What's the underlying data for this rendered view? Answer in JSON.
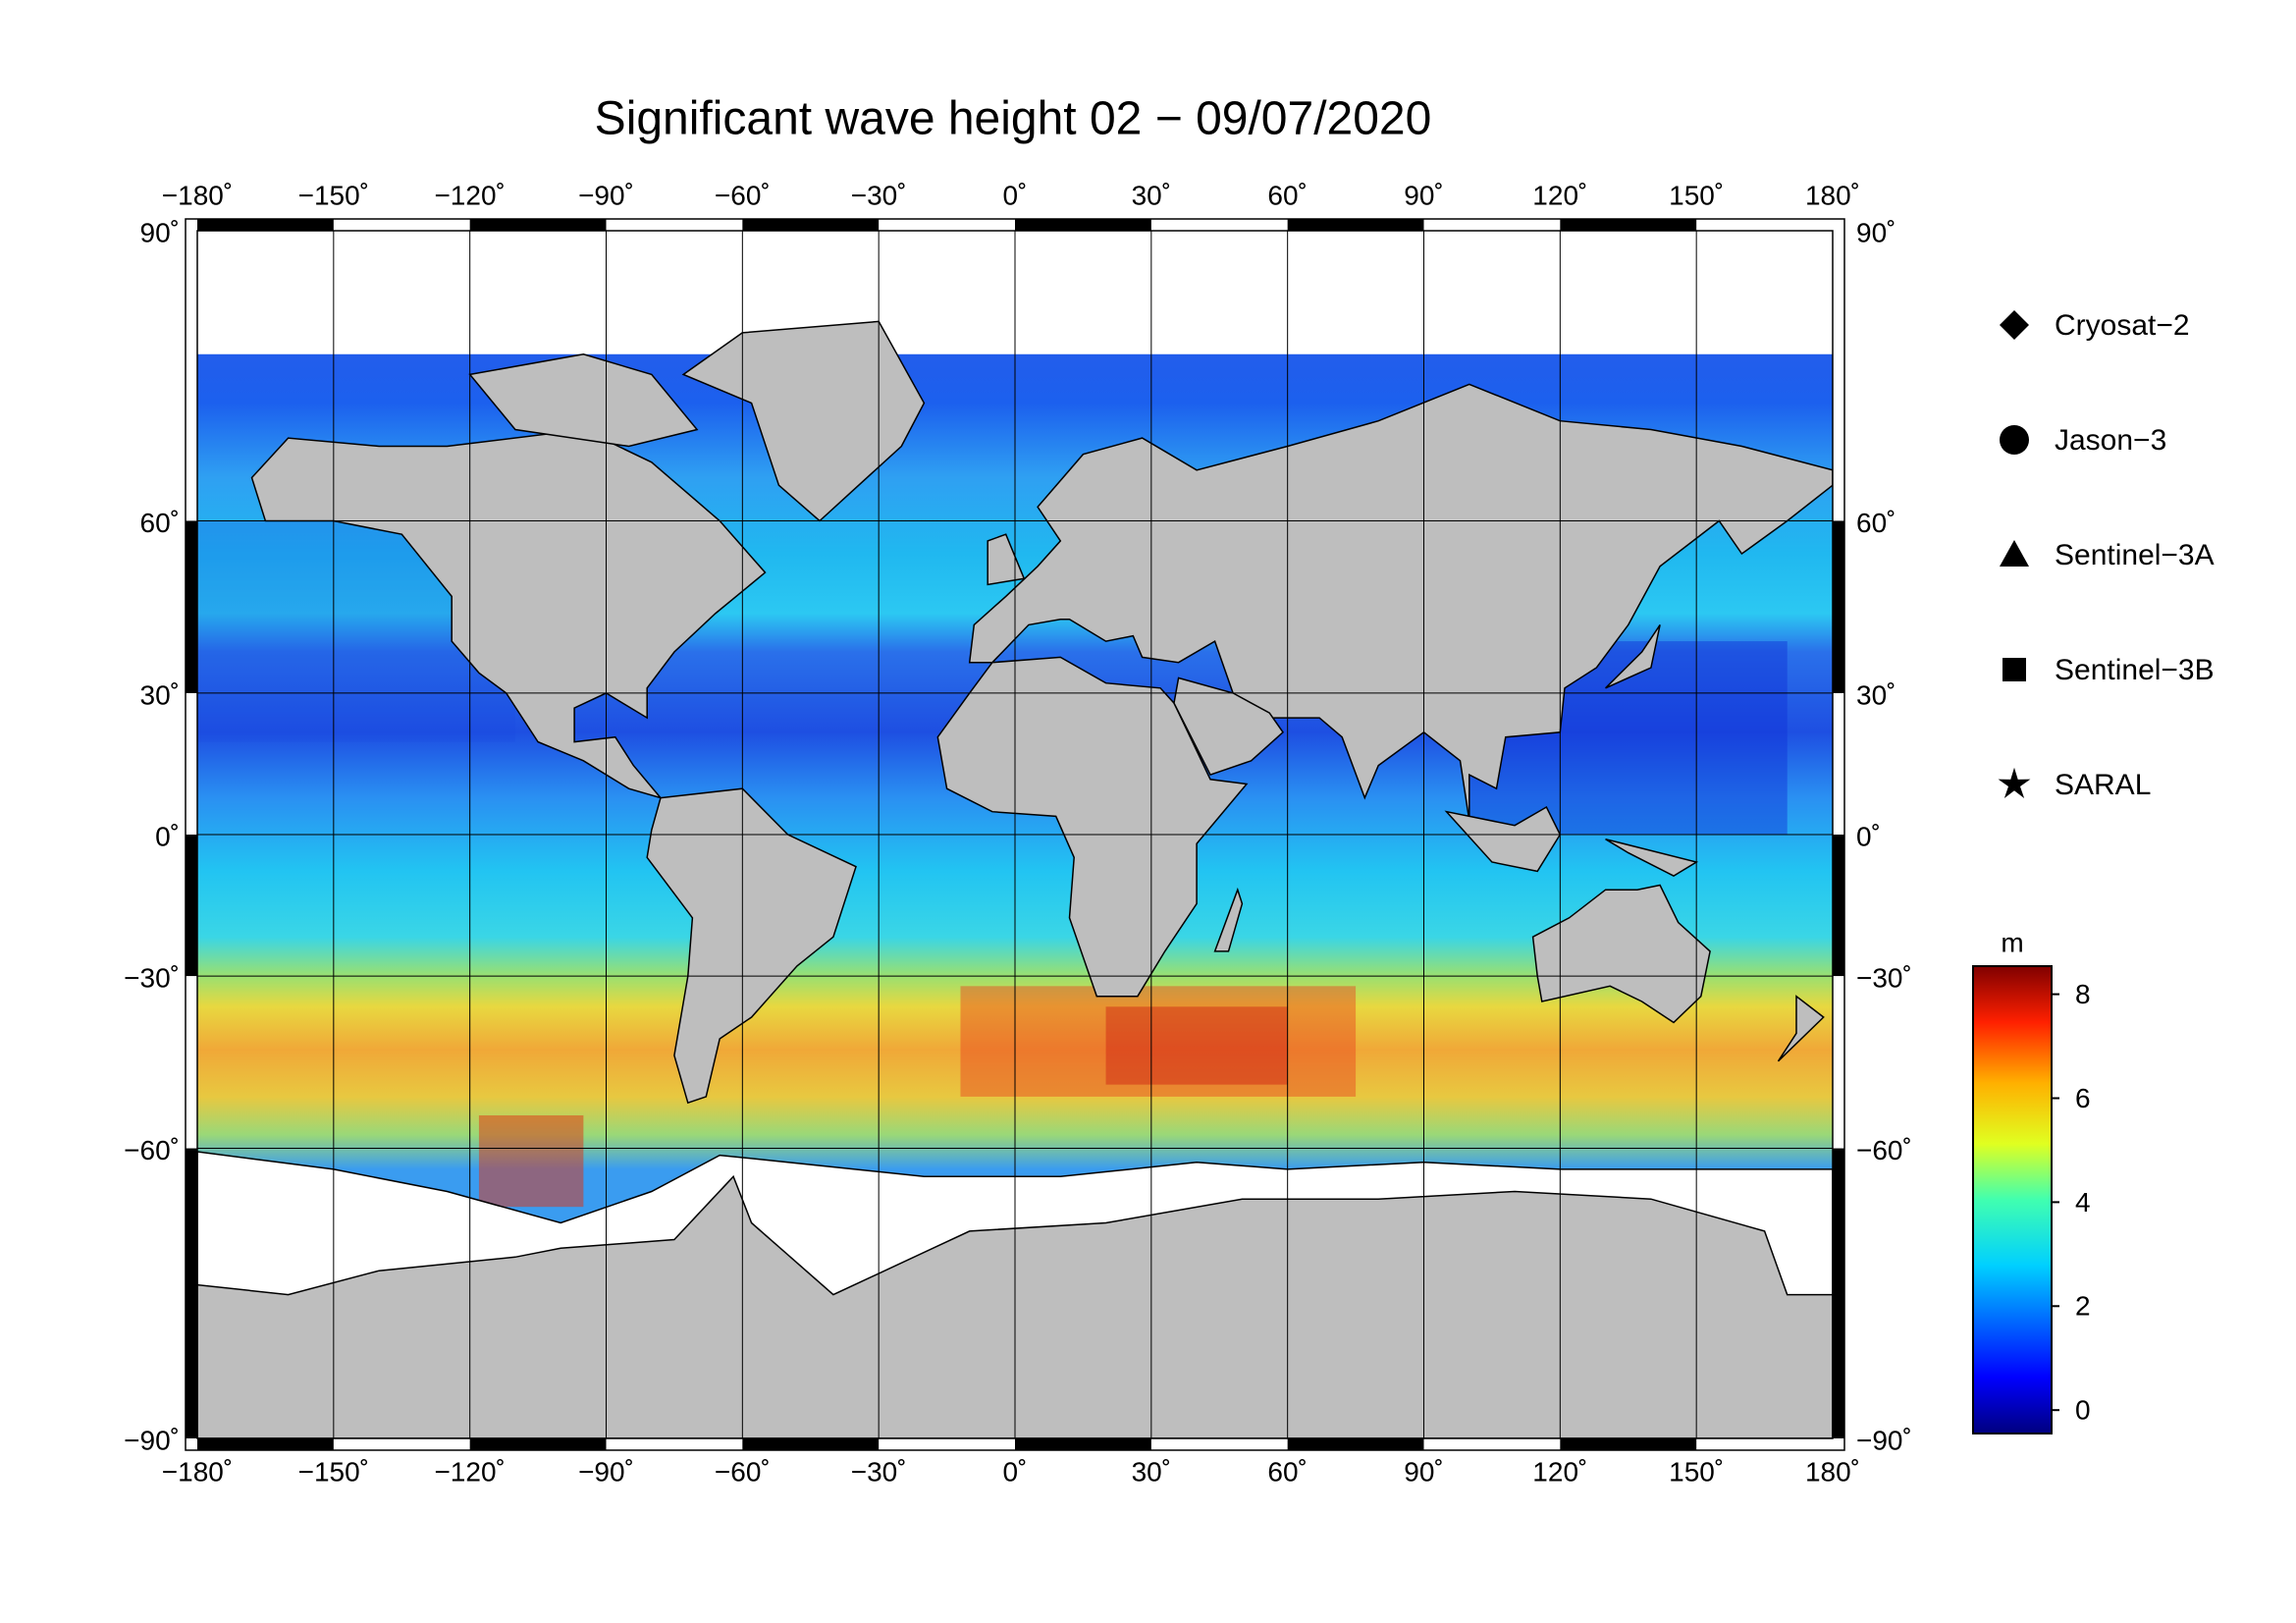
{
  "chart_data": {
    "type": "map",
    "title": "Significant wave height 02 − 09/07/2020",
    "projection": "miller",
    "xlim": [
      -180,
      180
    ],
    "ylim": [
      -90,
      90
    ],
    "xticks": [
      {
        "value": -180,
        "label": "−180˚"
      },
      {
        "value": -150,
        "label": "−150˚"
      },
      {
        "value": -120,
        "label": "−120˚"
      },
      {
        "value": -90,
        "label": "−90˚"
      },
      {
        "value": -60,
        "label": "−60˚"
      },
      {
        "value": -30,
        "label": "−30˚"
      },
      {
        "value": 0,
        "label": "0˚"
      },
      {
        "value": 30,
        "label": "30˚"
      },
      {
        "value": 60,
        "label": "60˚"
      },
      {
        "value": 90,
        "label": "90˚"
      },
      {
        "value": 120,
        "label": "120˚"
      },
      {
        "value": 150,
        "label": "150˚"
      },
      {
        "value": 180,
        "label": "180˚"
      }
    ],
    "yticks": [
      {
        "value": -90,
        "label": "−90˚"
      },
      {
        "value": -60,
        "label": "−60˚"
      },
      {
        "value": -30,
        "label": "−30˚"
      },
      {
        "value": 0,
        "label": "0˚"
      },
      {
        "value": 30,
        "label": "30˚"
      },
      {
        "value": 60,
        "label": "60˚"
      },
      {
        "value": 90,
        "label": "90˚"
      }
    ],
    "grid": true,
    "series": [
      {
        "name": "Cryosat−2",
        "marker": "diamond",
        "color": "#000000"
      },
      {
        "name": "Jason−3",
        "marker": "circle",
        "color": "#000000"
      },
      {
        "name": "Sentinel−3A",
        "marker": "triangle",
        "color": "#000000"
      },
      {
        "name": "Sentinel−3B",
        "marker": "square",
        "color": "#000000"
      },
      {
        "name": "SARAL",
        "marker": "star",
        "color": "#000000"
      }
    ],
    "colorbar": {
      "label": "m",
      "lim": [
        -0.45,
        8.54
      ],
      "ticks": [
        0,
        2,
        4,
        6,
        8
      ]
    }
  }
}
